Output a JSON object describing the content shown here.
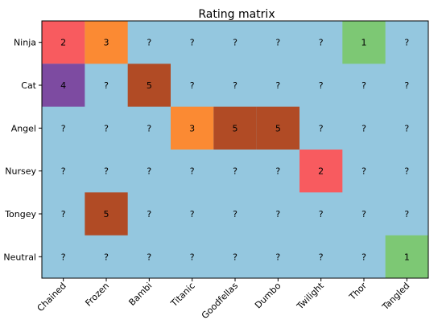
{
  "chart_data": {
    "type": "heatmap",
    "title": "Rating matrix",
    "x_categories": [
      "Chained",
      "Frozen",
      "Bambi",
      "Titanic",
      "Goodfellas",
      "Dumbo",
      "Twilight",
      "Thor",
      "Tangled"
    ],
    "y_categories": [
      "Ninja",
      "Cat",
      "Angel",
      "Nursey",
      "Tongey",
      "Neutral"
    ],
    "missing_label": "?",
    "values": [
      [
        2,
        3,
        null,
        null,
        null,
        null,
        null,
        1,
        null
      ],
      [
        4,
        null,
        5,
        null,
        null,
        null,
        null,
        null,
        null
      ],
      [
        null,
        null,
        null,
        3,
        5,
        5,
        null,
        null,
        null
      ],
      [
        null,
        null,
        null,
        null,
        null,
        null,
        2,
        null,
        null
      ],
      [
        null,
        5,
        null,
        null,
        null,
        null,
        null,
        null,
        null
      ],
      [
        null,
        null,
        null,
        null,
        null,
        null,
        null,
        null,
        1
      ]
    ],
    "colors": {
      "missing": "#94c7df",
      "1": "#7dc874",
      "2": "#f85b5f",
      "3": "#fb8a33",
      "4": "#7d4ba1",
      "5": "#b14b25"
    }
  }
}
